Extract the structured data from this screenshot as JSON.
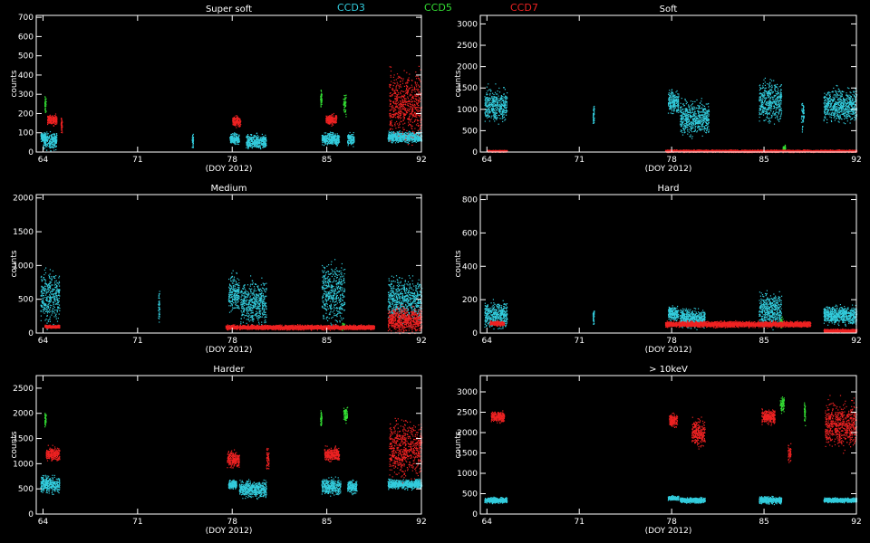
{
  "legend": [
    {
      "name": "CCD3",
      "color": "#33ccdd"
    },
    {
      "name": "CCD5",
      "color": "#33dd33"
    },
    {
      "name": "CCD7",
      "color": "#ee2222"
    }
  ],
  "chart_data": [
    {
      "type": "scatter",
      "title": "Super soft",
      "xlabel": "(DOY 2012)",
      "ylabel": "counts",
      "xlim": [
        63.5,
        92
      ],
      "ylim": [
        0,
        710
      ],
      "xticks": [
        64,
        71,
        78,
        85,
        92
      ],
      "yticks": [
        0,
        100,
        200,
        300,
        400,
        500,
        600,
        700
      ],
      "series": [
        {
          "color": "#33ccdd",
          "clusters": [
            [
              63.8,
              64.2,
              80,
              20
            ],
            [
              64.0,
              65.0,
              60,
              40
            ],
            [
              75.0,
              75.1,
              60,
              30
            ],
            [
              77.8,
              78.5,
              70,
              25
            ],
            [
              79.0,
              80.5,
              55,
              35
            ],
            [
              84.6,
              85.9,
              70,
              30
            ],
            [
              86.5,
              87.0,
              70,
              30
            ],
            [
              89.5,
              92,
              80,
              25
            ]
          ]
        },
        {
          "color": "#33dd33",
          "clusters": [
            [
              64.1,
              64.2,
              250,
              40
            ],
            [
              84.5,
              84.6,
              280,
              40
            ],
            [
              86.2,
              86.4,
              250,
              60
            ]
          ]
        },
        {
          "color": "#ee2222",
          "clusters": [
            [
              64.3,
              65.0,
              170,
              25
            ],
            [
              65.3,
              65.4,
              140,
              40
            ],
            [
              78.0,
              78.6,
              160,
              25
            ],
            [
              84.9,
              85.7,
              170,
              25
            ],
            [
              89.6,
              92,
              250,
              150
            ]
          ]
        }
      ]
    },
    {
      "type": "scatter",
      "title": "Soft",
      "xlabel": "(DOY 2012)",
      "ylabel": "counts",
      "xlim": [
        63.5,
        92
      ],
      "ylim": [
        0,
        3200
      ],
      "xticks": [
        64,
        71,
        78,
        85,
        92
      ],
      "yticks": [
        0,
        500,
        1000,
        1500,
        2000,
        2500,
        3000
      ],
      "series": [
        {
          "color": "#33ccdd",
          "clusters": [
            [
              63.8,
              65.5,
              1100,
              350
            ],
            [
              72.0,
              72.1,
              900,
              200
            ],
            [
              77.7,
              78.5,
              1200,
              250
            ],
            [
              78.6,
              80.8,
              800,
              350
            ],
            [
              84.6,
              86.3,
              1200,
              450
            ],
            [
              87.8,
              88.0,
              900,
              300
            ],
            [
              89.5,
              92,
              1100,
              350
            ]
          ]
        },
        {
          "color": "#33dd33",
          "clusters": [
            [
              86.4,
              86.6,
              100,
              60
            ]
          ]
        },
        {
          "color": "#ee2222",
          "clusters": [
            [
              64.0,
              65.5,
              30,
              20
            ],
            [
              77.5,
              92,
              30,
              25
            ]
          ]
        }
      ]
    },
    {
      "type": "scatter",
      "title": "Medium",
      "xlabel": "(DOY 2012)",
      "ylabel": "counts",
      "xlim": [
        63.5,
        92
      ],
      "ylim": [
        0,
        2050
      ],
      "xticks": [
        64,
        71,
        78,
        85,
        92
      ],
      "yticks": [
        0,
        500,
        1000,
        1500,
        2000
      ],
      "series": [
        {
          "color": "#33ccdd",
          "clusters": [
            [
              63.8,
              65.2,
              550,
              350
            ],
            [
              72.5,
              72.6,
              400,
              200
            ],
            [
              77.7,
              78.5,
              600,
              250
            ],
            [
              78.6,
              80.5,
              450,
              300
            ],
            [
              84.6,
              86.3,
              600,
              400
            ],
            [
              89.5,
              92,
              500,
              300
            ]
          ]
        },
        {
          "color": "#33dd33",
          "clusters": [
            [
              86.1,
              86.3,
              100,
              50
            ]
          ]
        },
        {
          "color": "#ee2222",
          "clusters": [
            [
              64.1,
              65.2,
              100,
              20
            ],
            [
              77.5,
              88.5,
              90,
              30
            ],
            [
              89.5,
              92,
              200,
              170
            ]
          ]
        }
      ]
    },
    {
      "type": "scatter",
      "title": "Hard",
      "xlabel": "(DOY 2012)",
      "ylabel": "counts",
      "xlim": [
        63.5,
        92
      ],
      "ylim": [
        0,
        830
      ],
      "xticks": [
        64,
        71,
        78,
        85,
        92
      ],
      "yticks": [
        0,
        200,
        400,
        600,
        800
      ],
      "series": [
        {
          "color": "#33ccdd",
          "clusters": [
            [
              63.8,
              65.5,
              110,
              70
            ],
            [
              72.0,
              72.1,
              100,
              40
            ],
            [
              77.7,
              78.5,
              120,
              40
            ],
            [
              78.6,
              80.5,
              90,
              50
            ],
            [
              84.6,
              86.3,
              140,
              90
            ],
            [
              89.5,
              92,
              110,
              50
            ]
          ]
        },
        {
          "color": "#33dd33",
          "clusters": [
            [
              86.2,
              86.4,
              60,
              30
            ]
          ]
        },
        {
          "color": "#ee2222",
          "clusters": [
            [
              64.2,
              65.3,
              60,
              12
            ],
            [
              77.5,
              88.5,
              55,
              15
            ],
            [
              89.5,
              92,
              15,
              10
            ]
          ]
        }
      ]
    },
    {
      "type": "scatter",
      "title": "Harder",
      "xlabel": "(DOY 2012)",
      "ylabel": "counts",
      "xlim": [
        63.5,
        92
      ],
      "ylim": [
        0,
        2750
      ],
      "xticks": [
        64,
        71,
        78,
        85,
        92
      ],
      "yticks": [
        0,
        500,
        1000,
        1500,
        2000,
        2500
      ],
      "series": [
        {
          "color": "#33ccdd",
          "clusters": [
            [
              63.8,
              65.2,
              600,
              150
            ],
            [
              77.7,
              78.3,
              600,
              80
            ],
            [
              78.5,
              80.5,
              500,
              150
            ],
            [
              84.6,
              86.0,
              550,
              150
            ],
            [
              86.5,
              87.2,
              550,
              120
            ],
            [
              89.5,
              92,
              600,
              80
            ]
          ]
        },
        {
          "color": "#33dd33",
          "clusters": [
            [
              64.1,
              64.2,
              1900,
              150
            ],
            [
              84.5,
              84.6,
              1900,
              150
            ],
            [
              86.2,
              86.5,
              2000,
              150
            ]
          ]
        },
        {
          "color": "#ee2222",
          "clusters": [
            [
              64.2,
              65.2,
              1200,
              120
            ],
            [
              77.6,
              78.5,
              1100,
              150
            ],
            [
              80.5,
              80.7,
              1100,
              200
            ],
            [
              84.8,
              85.9,
              1200,
              120
            ],
            [
              89.6,
              92,
              1300,
              500
            ]
          ]
        }
      ]
    },
    {
      "type": "scatter",
      "title": "> 10keV",
      "xlabel": "(DOY 2012)",
      "ylabel": "counts",
      "xlim": [
        63.5,
        92
      ],
      "ylim": [
        0,
        3400
      ],
      "xticks": [
        64,
        71,
        78,
        85,
        92
      ],
      "yticks": [
        0,
        500,
        1000,
        1500,
        2000,
        2500,
        3000
      ],
      "series": [
        {
          "color": "#33ccdd",
          "clusters": [
            [
              63.8,
              65.5,
              350,
              60
            ],
            [
              77.7,
              78.5,
              400,
              50
            ],
            [
              78.6,
              80.5,
              350,
              60
            ],
            [
              84.6,
              86.3,
              350,
              80
            ],
            [
              89.5,
              92,
              350,
              50
            ]
          ]
        },
        {
          "color": "#33dd33",
          "clusters": [
            [
              86.2,
              86.5,
              2700,
              200
            ],
            [
              88.0,
              88.1,
              2500,
              300
            ]
          ]
        },
        {
          "color": "#ee2222",
          "clusters": [
            [
              64.3,
              65.3,
              2400,
              120
            ],
            [
              77.8,
              78.4,
              2300,
              150
            ],
            [
              79.5,
              80.5,
              2000,
              300
            ],
            [
              84.8,
              85.8,
              2400,
              150
            ],
            [
              86.8,
              87.0,
              1500,
              200
            ],
            [
              89.6,
              92,
              2200,
              500
            ]
          ]
        }
      ]
    }
  ]
}
